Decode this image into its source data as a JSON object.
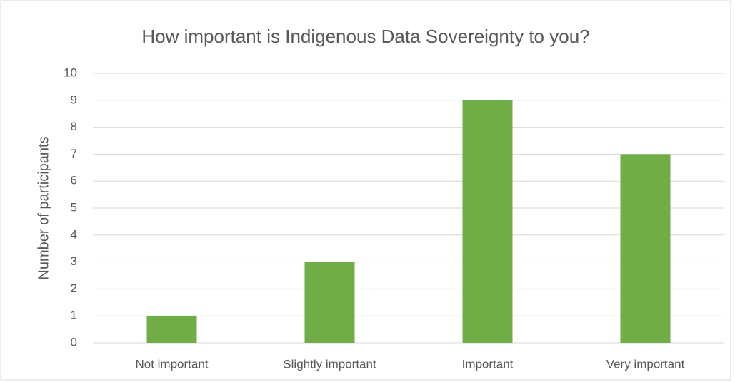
{
  "chart_data": {
    "type": "bar",
    "title": "How important is Indigenous Data Sovereignty to you?",
    "y_label": "Number of participants",
    "categories": [
      "Not important",
      "Slightly important",
      "Important",
      "Very important"
    ],
    "values": [
      1,
      3,
      9,
      7
    ],
    "color": "#70ad47",
    "ylim": [
      0,
      10
    ],
    "yticks": [
      0,
      1,
      2,
      3,
      4,
      5,
      6,
      7,
      8,
      9,
      10
    ],
    "grid": true
  }
}
